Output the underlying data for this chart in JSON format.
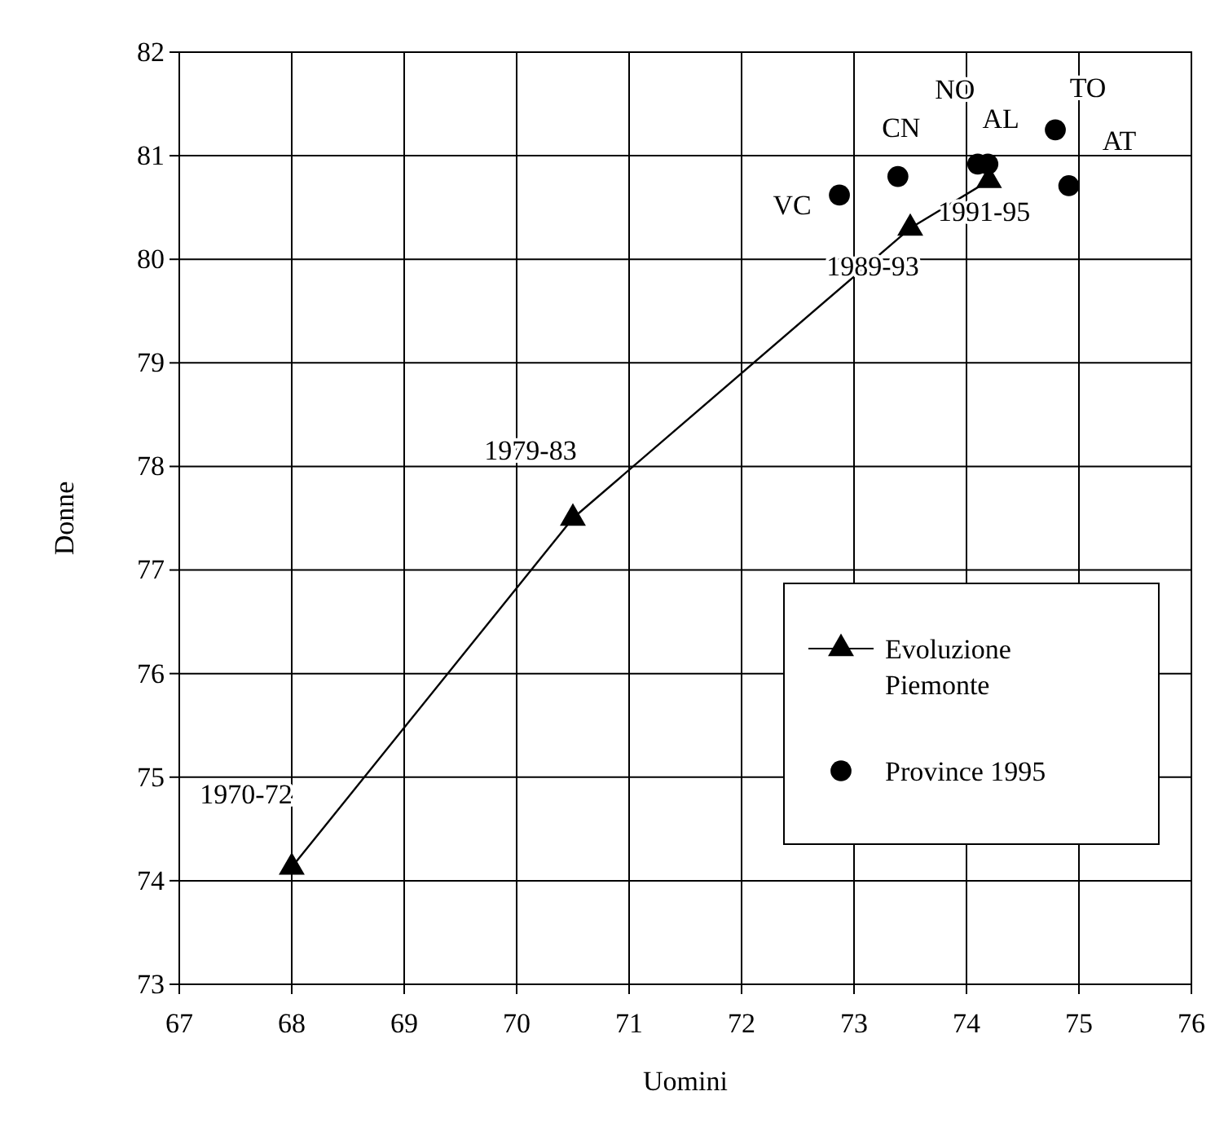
{
  "chart_data": {
    "type": "scatter",
    "xlabel": "Uomini",
    "ylabel": "Donne",
    "xlim": [
      67,
      76
    ],
    "xticks": [
      67,
      68,
      69,
      70,
      71,
      72,
      73,
      74,
      75,
      76
    ],
    "ylim": [
      73,
      82
    ],
    "yticks": [
      73,
      74,
      75,
      76,
      77,
      78,
      79,
      80,
      81,
      82
    ],
    "grid": true,
    "legend": "right",
    "series": [
      {
        "name": "Evoluzione Piemonte",
        "type": "line",
        "marker": "triangle",
        "color": "#000000",
        "x": [
          68.0,
          70.5,
          73.5,
          74.2
        ],
        "values": [
          74.13,
          77.5,
          80.3,
          80.76
        ],
        "value_labels": [
          "1970-72",
          "1979-83",
          "1989-93",
          "1991-95"
        ]
      },
      {
        "name": "Province 1995",
        "marker": "circle",
        "color": "#000000",
        "x": [
          72.87,
          73.39,
          74.1,
          74.19,
          74.79,
          74.91
        ],
        "values": [
          80.62,
          80.8,
          80.92,
          80.92,
          81.25,
          80.71
        ],
        "value_labels": [
          "VC",
          "CN",
          "NO",
          "AL",
          "TO",
          "AT"
        ]
      }
    ]
  }
}
